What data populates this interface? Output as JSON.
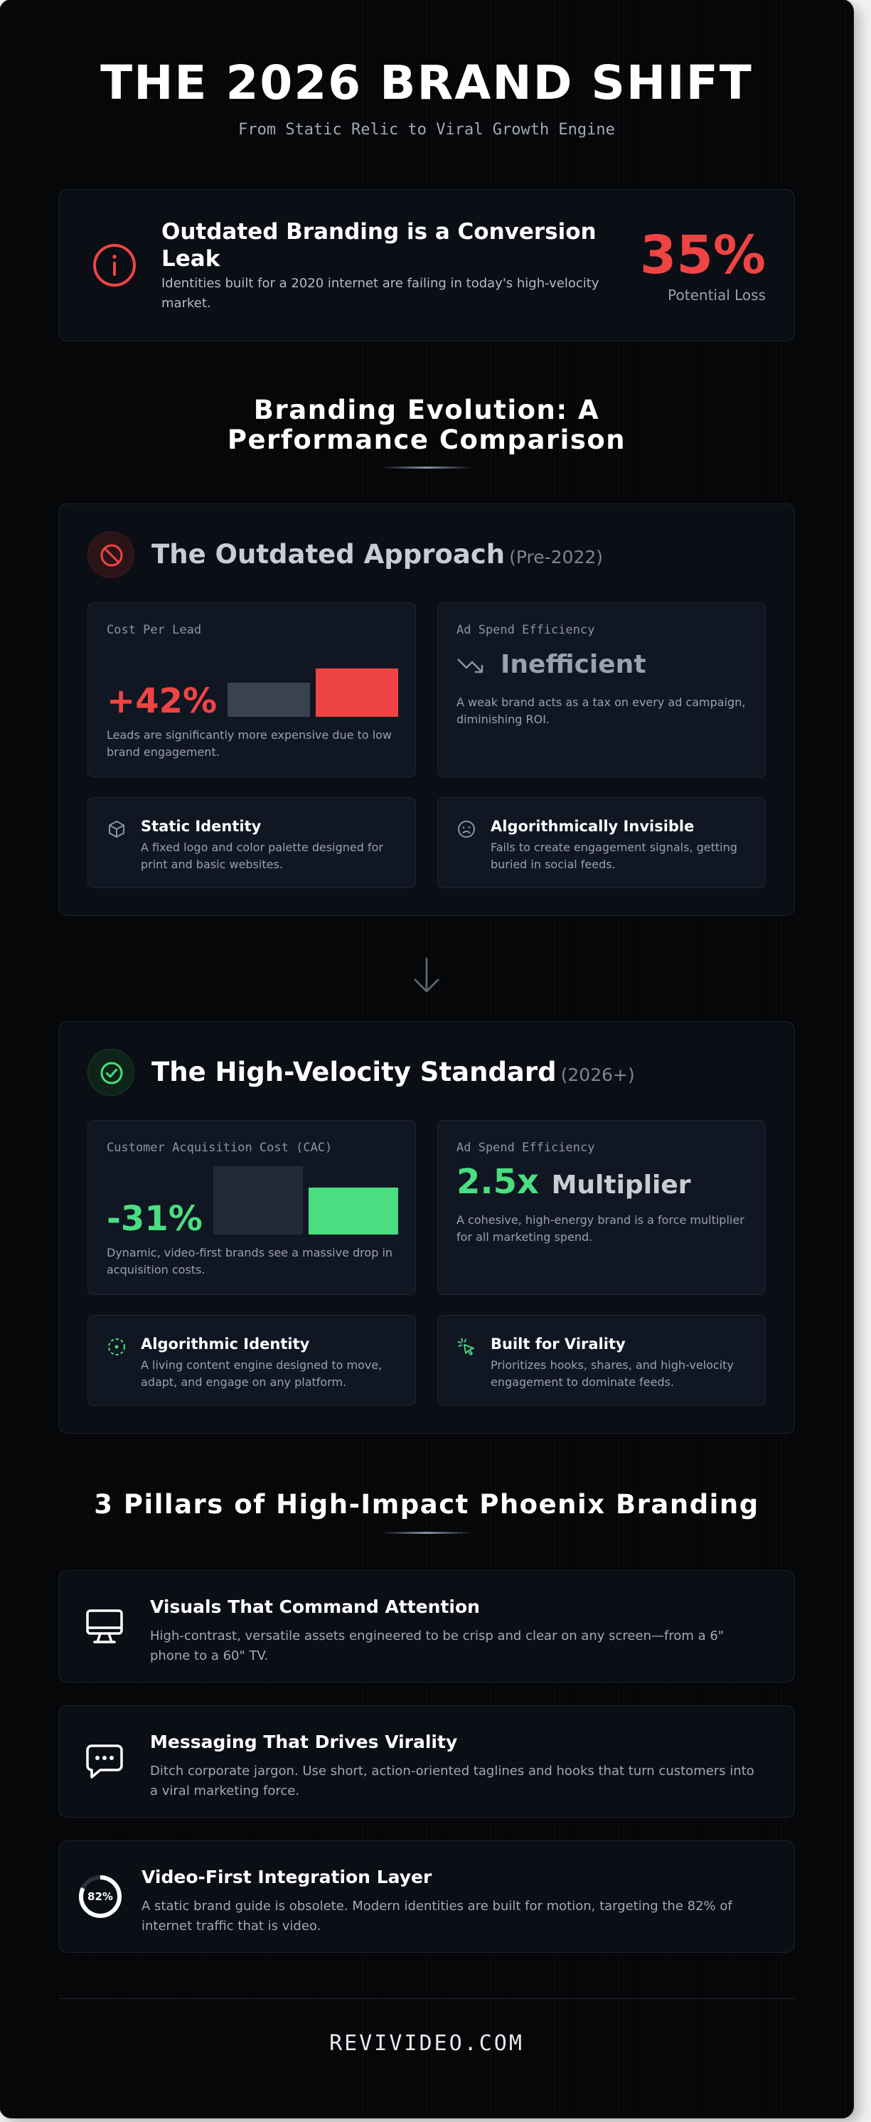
{
  "header": {
    "title": "THE 2026 BRAND SHIFT",
    "subtitle": "From Static Relic to Viral Growth Engine"
  },
  "alert": {
    "icon": "info-icon",
    "title": "Outdated Branding is a Conversion Leak",
    "description": "Identities built for a 2020 internet are failing in today's high-velocity market.",
    "stat_value": "35%",
    "stat_label": "Potential Loss"
  },
  "comparison": {
    "heading": "Branding Evolution: A Performance Comparison",
    "outdated": {
      "icon": "blocked-icon",
      "title": "The Outdated Approach",
      "suffix": "(Pre-2022)",
      "metric": {
        "label": "Cost Per Lead",
        "value": "+42%",
        "description": "Leads are significantly more expensive due to low brand engagement.",
        "bars": [
          {
            "name": "baseline",
            "value": 100,
            "color": "#3a4150"
          },
          {
            "name": "outdated",
            "value": 142,
            "color": "#ef4444"
          }
        ]
      },
      "efficiency": {
        "label": "Ad Spend Efficiency",
        "icon": "trend-down-icon",
        "value": "Inefficient",
        "description": "A weak brand acts as a tax on every ad campaign, diminishing ROI."
      },
      "features": [
        {
          "icon": "box-icon",
          "title": "Static Identity",
          "description": "A fixed logo and color palette designed for print and basic websites."
        },
        {
          "icon": "frown-icon",
          "title": "Algorithmically Invisible",
          "description": "Fails to create engagement signals, getting buried in social feeds."
        }
      ]
    },
    "standard": {
      "icon": "check-circle-icon",
      "title": "The High-Velocity Standard",
      "suffix": "(2026+)",
      "metric": {
        "label": "Customer Acquisition Cost (CAC)",
        "value": "-31%",
        "description": "Dynamic, video-first brands see a massive drop in acquisition costs.",
        "bars": [
          {
            "name": "baseline",
            "value": 100,
            "color": "#232a36"
          },
          {
            "name": "high-velocity",
            "value": 69,
            "color": "#4ade80"
          }
        ]
      },
      "efficiency": {
        "label": "Ad Spend Efficiency",
        "value": "2.5x",
        "value_suffix": "Multiplier",
        "description": "A cohesive, high-energy brand is a force multiplier for all marketing spend."
      },
      "features": [
        {
          "icon": "dashed-target-icon",
          "title": "Algorithmic Identity",
          "description": "A living content engine designed to move, adapt, and engage on any platform."
        },
        {
          "icon": "cursor-click-icon",
          "title": "Built for Virality",
          "description": "Prioritizes hooks, shares, and high-velocity engagement to dominate feeds."
        }
      ]
    }
  },
  "pillars": {
    "heading": "3 Pillars of High-Impact Phoenix Branding",
    "items": [
      {
        "icon": "monitor-icon",
        "title": "Visuals That Command Attention",
        "description": "High-contrast, versatile assets engineered to be crisp and clear on any screen—from a 6\" phone to a 60\" TV."
      },
      {
        "icon": "chat-bubble-icon",
        "title": "Messaging That Drives Virality",
        "description": "Ditch corporate jargon. Use short, action-oriented taglines and hooks that turn customers into a viral marketing force."
      },
      {
        "icon": "progress-ring-icon",
        "title": "Video-First Integration Layer",
        "description": "A static brand guide is obsolete. Modern identities are built for motion, targeting the 82% of internet traffic that is video.",
        "ring_label": "82%",
        "ring_value": 82
      }
    ]
  },
  "colors": {
    "danger": "#ef4444",
    "success": "#4ade80",
    "background": "#050608"
  },
  "footer": {
    "domain": "REVIVIDEO.COM"
  }
}
